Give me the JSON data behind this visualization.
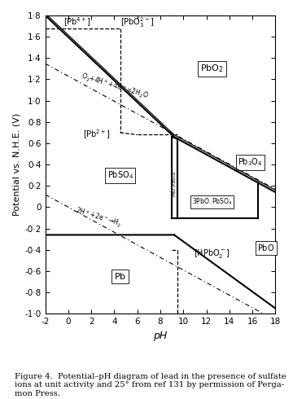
{
  "xlim": [
    -2,
    18
  ],
  "ylim": [
    -1.0,
    1.8
  ],
  "xlabel": "pH",
  "ylabel": "Potential vs. N.H.E. (V)",
  "xticks": [
    -2,
    0,
    2,
    4,
    6,
    8,
    10,
    12,
    14,
    16,
    18
  ],
  "ytick_vals": [
    -1.0,
    -0.8,
    -0.6,
    -0.4,
    -0.2,
    0.0,
    0.2,
    0.4,
    0.6,
    0.8,
    1.0,
    1.2,
    1.4,
    1.6,
    1.8
  ],
  "ytick_labels": [
    "-1·0",
    "-0·8",
    "-0·6",
    "-0·4",
    "-0·2",
    "0",
    "0·2",
    "0·4",
    "0·6",
    "0·8",
    "1·0",
    "1·2",
    "1·4",
    "1·6",
    "1·8"
  ],
  "figure_caption": "Figure 4.  Potential–pH diagram of lead in the presence of sulfate\nions at unit activity and 25° from ref 131 by permission of Perga-\nmon Press."
}
